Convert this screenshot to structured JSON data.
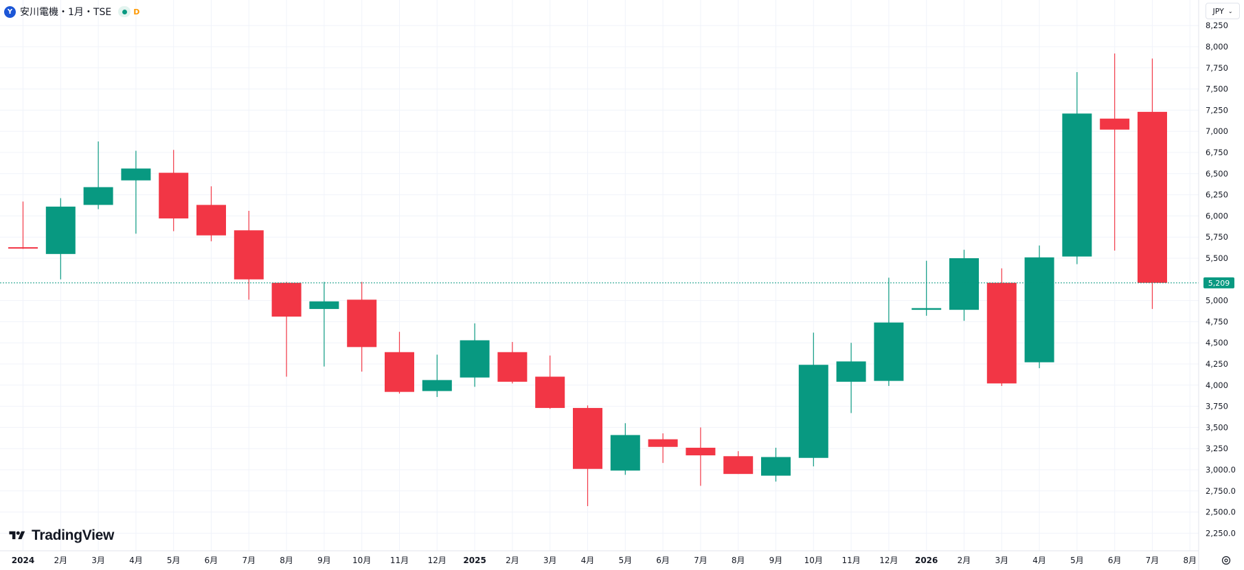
{
  "header": {
    "logo_letter": "Y",
    "title": "安川電機・1月・TSE",
    "status_letter": "D",
    "currency": "JPY"
  },
  "branding": {
    "logo_text": "TradingView"
  },
  "icons": {
    "settings": "gear-icon",
    "currency_dropdown": "chevron-down-icon"
  },
  "colors": {
    "up": "#089981",
    "down": "#f23645",
    "grid": "#f0f3fa",
    "text": "#131722",
    "price_line": "#089981"
  },
  "chart_data": {
    "type": "candlestick",
    "interval": "1 month",
    "ylim": [
      2100,
      8350
    ],
    "y_ticks": [
      {
        "v": 8250,
        "label": "8,250"
      },
      {
        "v": 8000,
        "label": "8,000"
      },
      {
        "v": 7750,
        "label": "7,750"
      },
      {
        "v": 7500,
        "label": "7,500"
      },
      {
        "v": 7250,
        "label": "7,250"
      },
      {
        "v": 7000,
        "label": "7,000"
      },
      {
        "v": 6750,
        "label": "6,750"
      },
      {
        "v": 6500,
        "label": "6,500"
      },
      {
        "v": 6250,
        "label": "6,250"
      },
      {
        "v": 6000,
        "label": "6,000"
      },
      {
        "v": 5750,
        "label": "5,750"
      },
      {
        "v": 5500,
        "label": "5,500"
      },
      {
        "v": 5000,
        "label": "5,000"
      },
      {
        "v": 4750,
        "label": "4,750"
      },
      {
        "v": 4500,
        "label": "4,500"
      },
      {
        "v": 4250,
        "label": "4,250"
      },
      {
        "v": 4000,
        "label": "4,000"
      },
      {
        "v": 3750,
        "label": "3,750"
      },
      {
        "v": 3500,
        "label": "3,500"
      },
      {
        "v": 3250,
        "label": "3,250"
      },
      {
        "v": 3000,
        "label": "3,000.0"
      },
      {
        "v": 2750,
        "label": "2,750.0"
      },
      {
        "v": 2500,
        "label": "2,500.0"
      },
      {
        "v": 2250,
        "label": "2,250.0"
      }
    ],
    "x_labels": [
      "2024",
      "2月",
      "3月",
      "4月",
      "5月",
      "6月",
      "7月",
      "8月",
      "9月",
      "10月",
      "11月",
      "12月",
      "2025",
      "2月",
      "3月",
      "4月",
      "5月",
      "6月",
      "7月",
      "8月",
      "9月",
      "10月",
      "11月",
      "12月",
      "2026",
      "2月",
      "3月",
      "4月",
      "5月",
      "6月",
      "7月",
      "8月"
    ],
    "bold_labels": [
      "2024",
      "2025",
      "2026"
    ],
    "candles": [
      {
        "o": 5630,
        "h": 6170,
        "l": 5610,
        "c": 5620
      },
      {
        "o": 5550,
        "h": 6210,
        "l": 5250,
        "c": 6110
      },
      {
        "o": 6130,
        "h": 6880,
        "l": 6080,
        "c": 6340
      },
      {
        "o": 6420,
        "h": 6770,
        "l": 5790,
        "c": 6560
      },
      {
        "o": 6510,
        "h": 6780,
        "l": 5820,
        "c": 5970
      },
      {
        "o": 6130,
        "h": 6350,
        "l": 5700,
        "c": 5770
      },
      {
        "o": 5830,
        "h": 6060,
        "l": 5010,
        "c": 5250
      },
      {
        "o": 5210,
        "h": 5220,
        "l": 4100,
        "c": 4810
      },
      {
        "o": 4900,
        "h": 5220,
        "l": 4220,
        "c": 4990
      },
      {
        "o": 5010,
        "h": 5220,
        "l": 4160,
        "c": 4450
      },
      {
        "o": 4390,
        "h": 4630,
        "l": 3900,
        "c": 3920
      },
      {
        "o": 3930,
        "h": 4360,
        "l": 3860,
        "c": 4060
      },
      {
        "o": 4090,
        "h": 4730,
        "l": 3980,
        "c": 4530
      },
      {
        "o": 4390,
        "h": 4510,
        "l": 4020,
        "c": 4040
      },
      {
        "o": 4100,
        "h": 4350,
        "l": 3720,
        "c": 3730
      },
      {
        "o": 3730,
        "h": 3760,
        "l": 2570,
        "c": 3010
      },
      {
        "o": 2990,
        "h": 3550,
        "l": 2940,
        "c": 3410
      },
      {
        "o": 3360,
        "h": 3430,
        "l": 3080,
        "c": 3270
      },
      {
        "o": 3260,
        "h": 3500,
        "l": 2810,
        "c": 3170
      },
      {
        "o": 3160,
        "h": 3220,
        "l": 2950,
        "c": 2950
      },
      {
        "o": 2930,
        "h": 3260,
        "l": 2860,
        "c": 3150
      },
      {
        "o": 3140,
        "h": 4620,
        "l": 3040,
        "c": 4240
      },
      {
        "o": 4040,
        "h": 4500,
        "l": 3670,
        "c": 4280
      },
      {
        "o": 4050,
        "h": 5270,
        "l": 3990,
        "c": 4740
      },
      {
        "o": 4890,
        "h": 5470,
        "l": 4820,
        "c": 4910
      },
      {
        "o": 4890,
        "h": 5600,
        "l": 4760,
        "c": 5500
      },
      {
        "o": 5210,
        "h": 5380,
        "l": 3990,
        "c": 4020
      },
      {
        "o": 4270,
        "h": 5650,
        "l": 4200,
        "c": 5510
      },
      {
        "o": 5520,
        "h": 7700,
        "l": 5430,
        "c": 7210
      },
      {
        "o": 7150,
        "h": 7920,
        "l": 5590,
        "c": 7020
      },
      {
        "o": 7230,
        "h": 7860,
        "l": 4900,
        "c": 5209
      }
    ],
    "last_price": 5209,
    "last_price_label": "5,209"
  }
}
